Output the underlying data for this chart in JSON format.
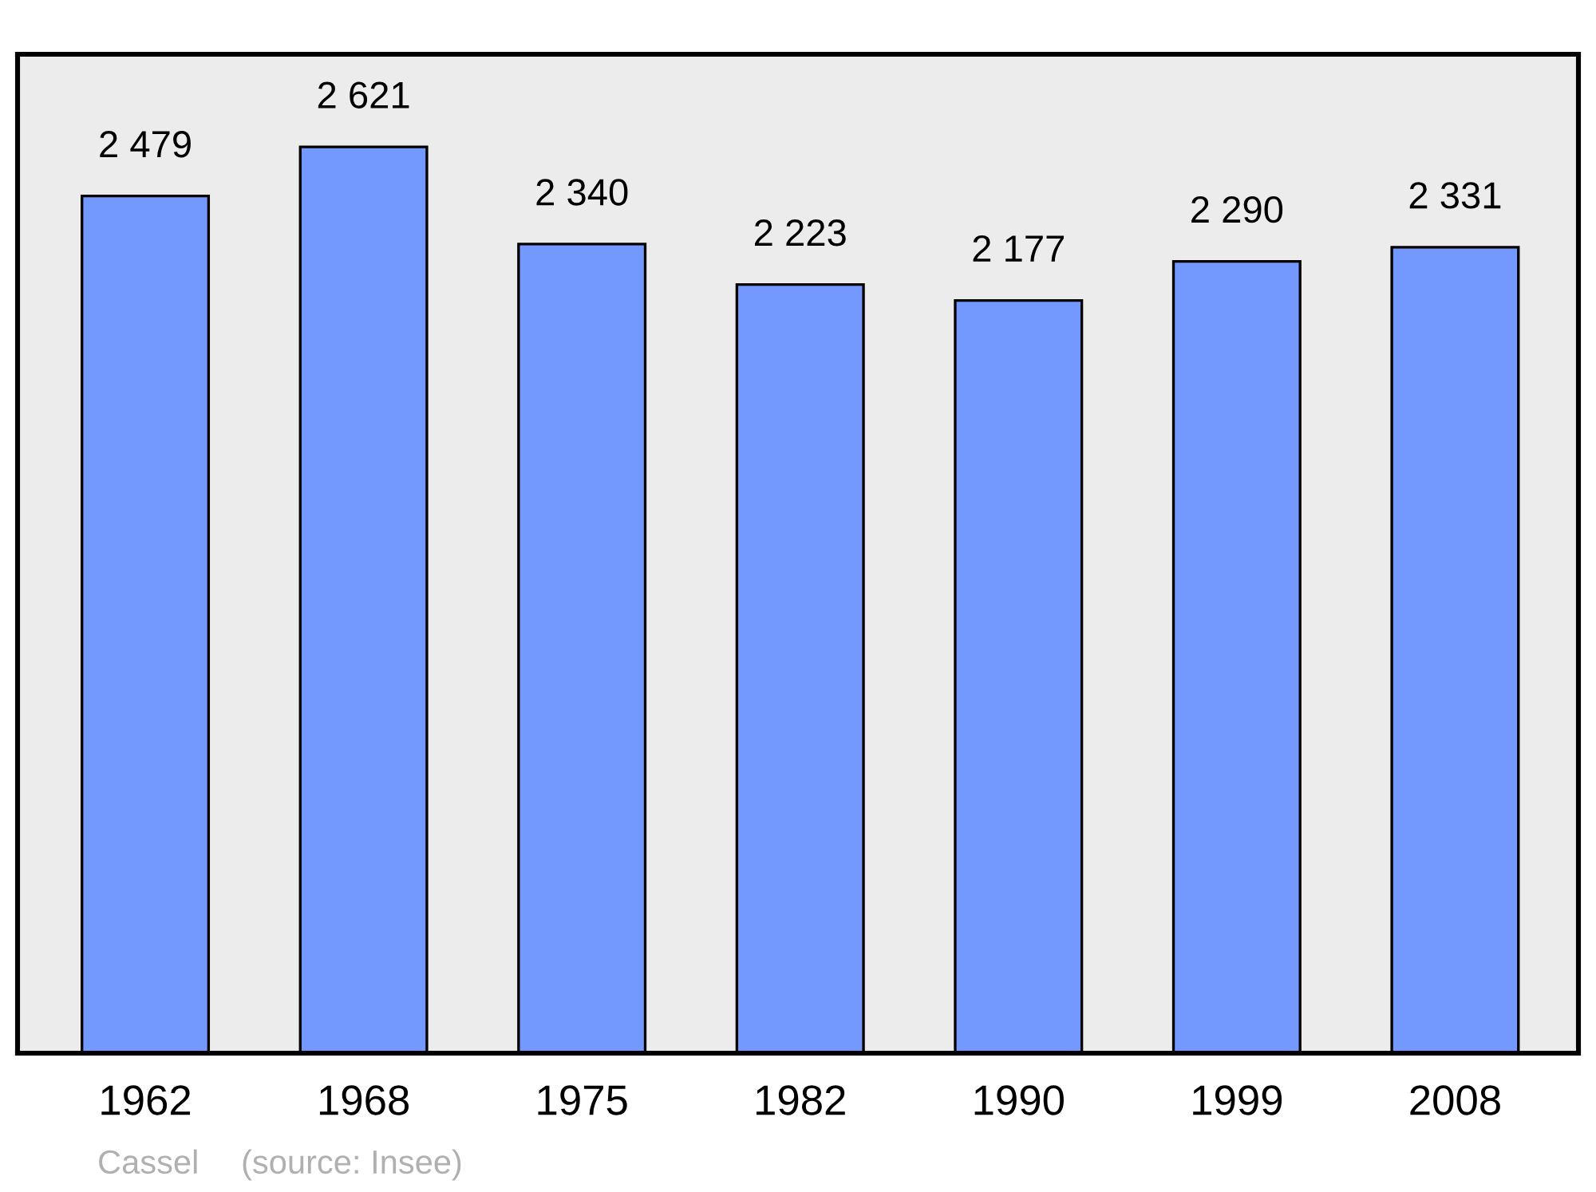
{
  "chart_data": {
    "type": "bar",
    "categories": [
      "1962",
      "1968",
      "1975",
      "1982",
      "1990",
      "1999",
      "2008"
    ],
    "values": [
      2479,
      2621,
      2340,
      2223,
      2177,
      2290,
      2331
    ],
    "value_labels": [
      "2 479",
      "2 621",
      "2 340",
      "2 223",
      "2 177",
      "2 290",
      "2 331"
    ],
    "color": "#7399ff",
    "ylim": [
      0,
      2889
    ],
    "tick_labels": "x",
    "grid": false,
    "legend": false,
    "annotations": [
      "Cassel",
      "(source: Insee)"
    ]
  }
}
